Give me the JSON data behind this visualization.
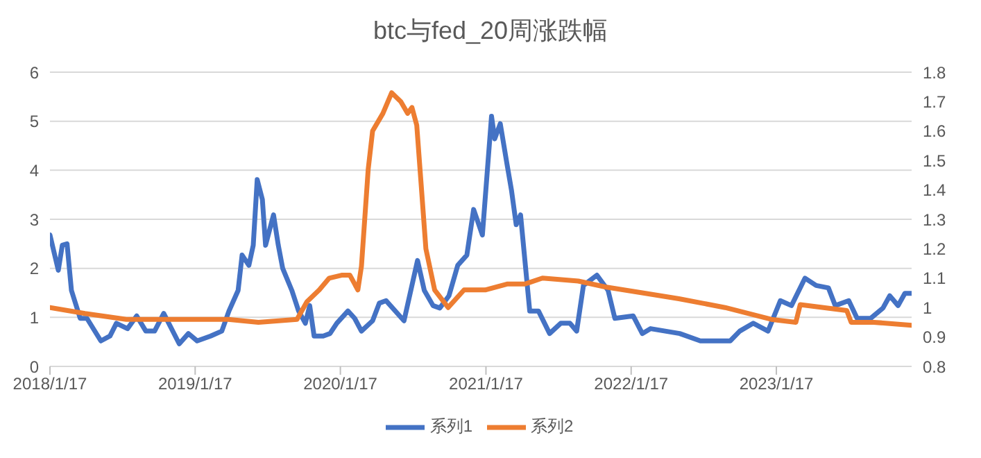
{
  "chart_data": {
    "type": "line",
    "title": "btc与fed_20周涨跌幅",
    "xlim": [
      "2018-01-17",
      "2023-12-23"
    ],
    "xticks": [
      {
        "value": "2018-01-17",
        "label": "2018/1/17"
      },
      {
        "value": "2019-01-17",
        "label": "2019/1/17"
      },
      {
        "value": "2020-01-17",
        "label": "2020/1/17"
      },
      {
        "value": "2021-01-17",
        "label": "2021/1/17"
      },
      {
        "value": "2022-01-17",
        "label": "2022/1/17"
      },
      {
        "value": "2023-01-17",
        "label": "2023/1/17"
      }
    ],
    "ylim": [
      0,
      6
    ],
    "yticks": [
      0,
      1,
      2,
      3,
      4,
      5,
      6
    ],
    "y2lim": [
      0.8,
      1.8
    ],
    "y2ticks": [
      0.8,
      0.9,
      1,
      1.1,
      1.2,
      1.3,
      1.4,
      1.5,
      1.6,
      1.7,
      1.8
    ],
    "grid": "y",
    "legend": "bottom",
    "marker": "none",
    "line_style": "solid",
    "series": [
      {
        "name": "系列1",
        "color": "#4472c4",
        "x": [
          "2018-01-17",
          "2018-02-07",
          "2018-02-17",
          "2018-03-01",
          "2018-03-12",
          "2018-04-03",
          "2018-04-20",
          "2018-05-25",
          "2018-06-17",
          "2018-07-03",
          "2018-07-31",
          "2018-08-23",
          "2018-09-15",
          "2018-10-07",
          "2018-10-30",
          "2018-12-08",
          "2018-12-31",
          "2019-01-22",
          "2019-02-25",
          "2019-03-25",
          "2019-04-12",
          "2019-05-05",
          "2019-05-15",
          "2019-06-01",
          "2019-06-12",
          "2019-06-22",
          "2019-07-05",
          "2019-07-13",
          "2019-08-02",
          "2019-08-14",
          "2019-08-25",
          "2019-09-17",
          "2019-10-04",
          "2019-10-21",
          "2019-11-01",
          "2019-11-12",
          "2019-12-05",
          "2019-12-22",
          "2020-01-08",
          "2020-02-05",
          "2020-02-22",
          "2020-03-10",
          "2020-04-07",
          "2020-04-24",
          "2020-05-11",
          "2020-06-25",
          "2020-07-29",
          "2020-08-15",
          "2020-09-06",
          "2020-09-23",
          "2020-10-16",
          "2020-11-07",
          "2020-11-30",
          "2020-12-17",
          "2021-01-08",
          "2021-01-31",
          "2021-02-08",
          "2021-02-22",
          "2021-03-11",
          "2021-03-22",
          "2021-04-03",
          "2021-04-14",
          "2021-05-07",
          "2021-05-29",
          "2021-06-26",
          "2021-07-24",
          "2021-08-16",
          "2021-09-02",
          "2021-09-19",
          "2021-10-23",
          "2021-11-20",
          "2021-12-07",
          "2022-01-22",
          "2022-02-14",
          "2022-03-07",
          "2022-05-19",
          "2022-07-10",
          "2022-08-20",
          "2022-09-23",
          "2022-10-17",
          "2022-11-20",
          "2022-12-27",
          "2023-01-27",
          "2023-02-24",
          "2023-03-30",
          "2023-04-27",
          "2023-05-28",
          "2023-06-14",
          "2023-07-18",
          "2023-08-08",
          "2023-09-11",
          "2023-10-12",
          "2023-10-29",
          "2023-11-19",
          "2023-12-06",
          "2023-12-23"
        ],
        "values": [
          2.68,
          1.96,
          2.47,
          2.5,
          1.55,
          0.98,
          0.98,
          0.52,
          0.62,
          0.88,
          0.77,
          1.03,
          0.72,
          0.72,
          1.08,
          0.46,
          0.67,
          0.52,
          0.62,
          0.72,
          1.13,
          1.55,
          2.27,
          2.06,
          2.47,
          3.81,
          3.4,
          2.47,
          3.09,
          2.47,
          2.0,
          1.55,
          1.13,
          0.88,
          1.24,
          0.62,
          0.62,
          0.67,
          0.88,
          1.13,
          0.98,
          0.72,
          0.93,
          1.29,
          1.34,
          0.93,
          2.16,
          1.55,
          1.24,
          1.19,
          1.44,
          2.06,
          2.27,
          3.2,
          2.68,
          5.1,
          4.64,
          4.95,
          4.12,
          3.6,
          2.89,
          3.09,
          1.13,
          1.13,
          0.67,
          0.88,
          0.88,
          0.72,
          1.65,
          1.86,
          1.55,
          0.98,
          1.03,
          0.67,
          0.77,
          0.67,
          0.52,
          0.52,
          0.52,
          0.72,
          0.88,
          0.72,
          1.34,
          1.24,
          1.8,
          1.65,
          1.6,
          1.24,
          1.34,
          0.98,
          0.98,
          1.19,
          1.44,
          1.24,
          1.49,
          1.49
        ]
      },
      {
        "name": "系列2",
        "color": "#ed7d31",
        "axis": "y2",
        "x": [
          "2018-01-17",
          "2018-04-15",
          "2018-07-28",
          "2018-11-07",
          "2019-02-17",
          "2019-04-10",
          "2019-06-25",
          "2019-09-30",
          "2019-10-25",
          "2019-11-25",
          "2019-12-20",
          "2020-01-20",
          "2020-02-10",
          "2020-03-01",
          "2020-03-10",
          "2020-03-27",
          "2020-04-07",
          "2020-05-03",
          "2020-05-25",
          "2020-06-17",
          "2020-07-04",
          "2020-07-15",
          "2020-07-27",
          "2020-08-07",
          "2020-08-19",
          "2020-09-10",
          "2020-10-14",
          "2020-11-23",
          "2021-01-15",
          "2021-03-11",
          "2021-04-25",
          "2021-06-08",
          "2021-09-06",
          "2021-11-13",
          "2022-02-14",
          "2022-05-17",
          "2022-09-10",
          "2023-01-04",
          "2023-03-07",
          "2023-03-18",
          "2023-07-13",
          "2023-07-24",
          "2023-09-19",
          "2023-12-23"
        ],
        "values": [
          1.0,
          0.98,
          0.96,
          0.96,
          0.96,
          0.96,
          0.95,
          0.96,
          1.02,
          1.06,
          1.1,
          1.11,
          1.11,
          1.06,
          1.14,
          1.47,
          1.6,
          1.66,
          1.73,
          1.7,
          1.66,
          1.68,
          1.62,
          1.42,
          1.2,
          1.06,
          1.0,
          1.06,
          1.06,
          1.08,
          1.08,
          1.1,
          1.09,
          1.07,
          1.05,
          1.03,
          1.0,
          0.96,
          0.95,
          1.01,
          0.99,
          0.95,
          0.95,
          0.94
        ]
      }
    ]
  }
}
